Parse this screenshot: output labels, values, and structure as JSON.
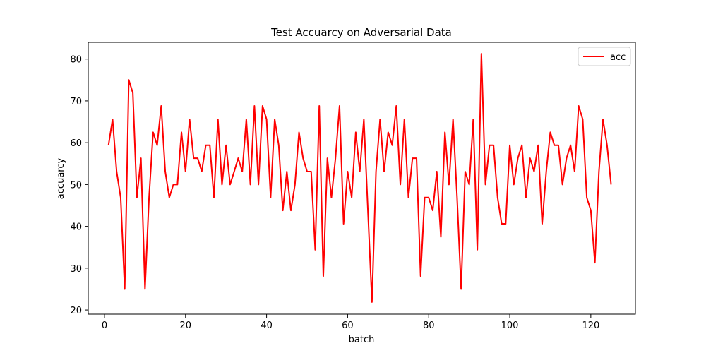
{
  "chart_data": {
    "type": "line",
    "title": "Test Accuarcy on Adversarial Data",
    "xlabel": "batch",
    "ylabel": "accuarcy",
    "xlim": [
      -4,
      131
    ],
    "ylim": [
      19,
      84
    ],
    "xticks": [
      0,
      20,
      40,
      60,
      80,
      100,
      120
    ],
    "yticks": [
      20,
      30,
      40,
      50,
      60,
      70,
      80
    ],
    "grid": false,
    "legend_position": "top-right",
    "series": [
      {
        "name": "acc",
        "color": "#ff0000",
        "x": [
          1,
          2,
          3,
          4,
          5,
          6,
          7,
          8,
          9,
          10,
          11,
          12,
          13,
          14,
          15,
          16,
          17,
          18,
          19,
          20,
          21,
          22,
          23,
          24,
          25,
          26,
          27,
          28,
          29,
          30,
          31,
          32,
          33,
          34,
          35,
          36,
          37,
          38,
          39,
          40,
          41,
          42,
          43,
          44,
          45,
          46,
          47,
          48,
          49,
          50,
          51,
          52,
          53,
          54,
          55,
          56,
          57,
          58,
          59,
          60,
          61,
          62,
          63,
          64,
          65,
          66,
          67,
          68,
          69,
          70,
          71,
          72,
          73,
          74,
          75,
          76,
          77,
          78,
          79,
          80,
          81,
          82,
          83,
          84,
          85,
          86,
          87,
          88,
          89,
          90,
          91,
          92,
          93,
          94,
          95,
          96,
          97,
          98,
          99,
          100,
          101,
          102,
          103,
          104,
          105,
          106,
          107,
          108,
          109,
          110,
          111,
          112,
          113,
          114,
          115,
          116,
          117,
          118,
          119,
          120,
          121,
          122,
          123,
          124,
          125
        ],
        "values": [
          59.4,
          65.6,
          53.1,
          46.9,
          25.0,
          75.0,
          71.9,
          46.9,
          56.3,
          25.0,
          46.9,
          62.5,
          59.4,
          68.8,
          53.1,
          46.9,
          50.0,
          50.0,
          62.5,
          53.1,
          65.6,
          56.3,
          56.3,
          53.1,
          59.4,
          59.4,
          46.9,
          65.6,
          50.0,
          59.4,
          50.0,
          53.1,
          56.3,
          53.1,
          65.6,
          50.0,
          68.8,
          50.0,
          68.8,
          65.6,
          46.9,
          65.6,
          59.4,
          43.8,
          53.1,
          43.8,
          50.0,
          62.5,
          56.3,
          53.1,
          53.1,
          34.4,
          68.8,
          28.1,
          56.3,
          46.9,
          56.3,
          68.8,
          40.6,
          53.1,
          46.9,
          62.5,
          53.1,
          65.6,
          43.8,
          21.9,
          53.1,
          65.6,
          53.1,
          62.5,
          59.4,
          68.8,
          50.0,
          65.6,
          46.9,
          56.3,
          56.3,
          28.1,
          46.9,
          46.9,
          43.8,
          53.1,
          37.5,
          62.5,
          50.0,
          65.6,
          46.9,
          25.0,
          53.1,
          50.0,
          65.6,
          34.4,
          81.3,
          50.0,
          59.4,
          59.4,
          46.9,
          40.6,
          40.6,
          59.4,
          50.0,
          56.3,
          59.4,
          46.9,
          56.3,
          53.1,
          59.4,
          40.6,
          53.1,
          62.5,
          59.4,
          59.4,
          50.0,
          56.3,
          59.4,
          53.1,
          68.8,
          65.6,
          46.9,
          43.8,
          31.3,
          53.1,
          65.6,
          59.4,
          50.0
        ]
      }
    ]
  }
}
